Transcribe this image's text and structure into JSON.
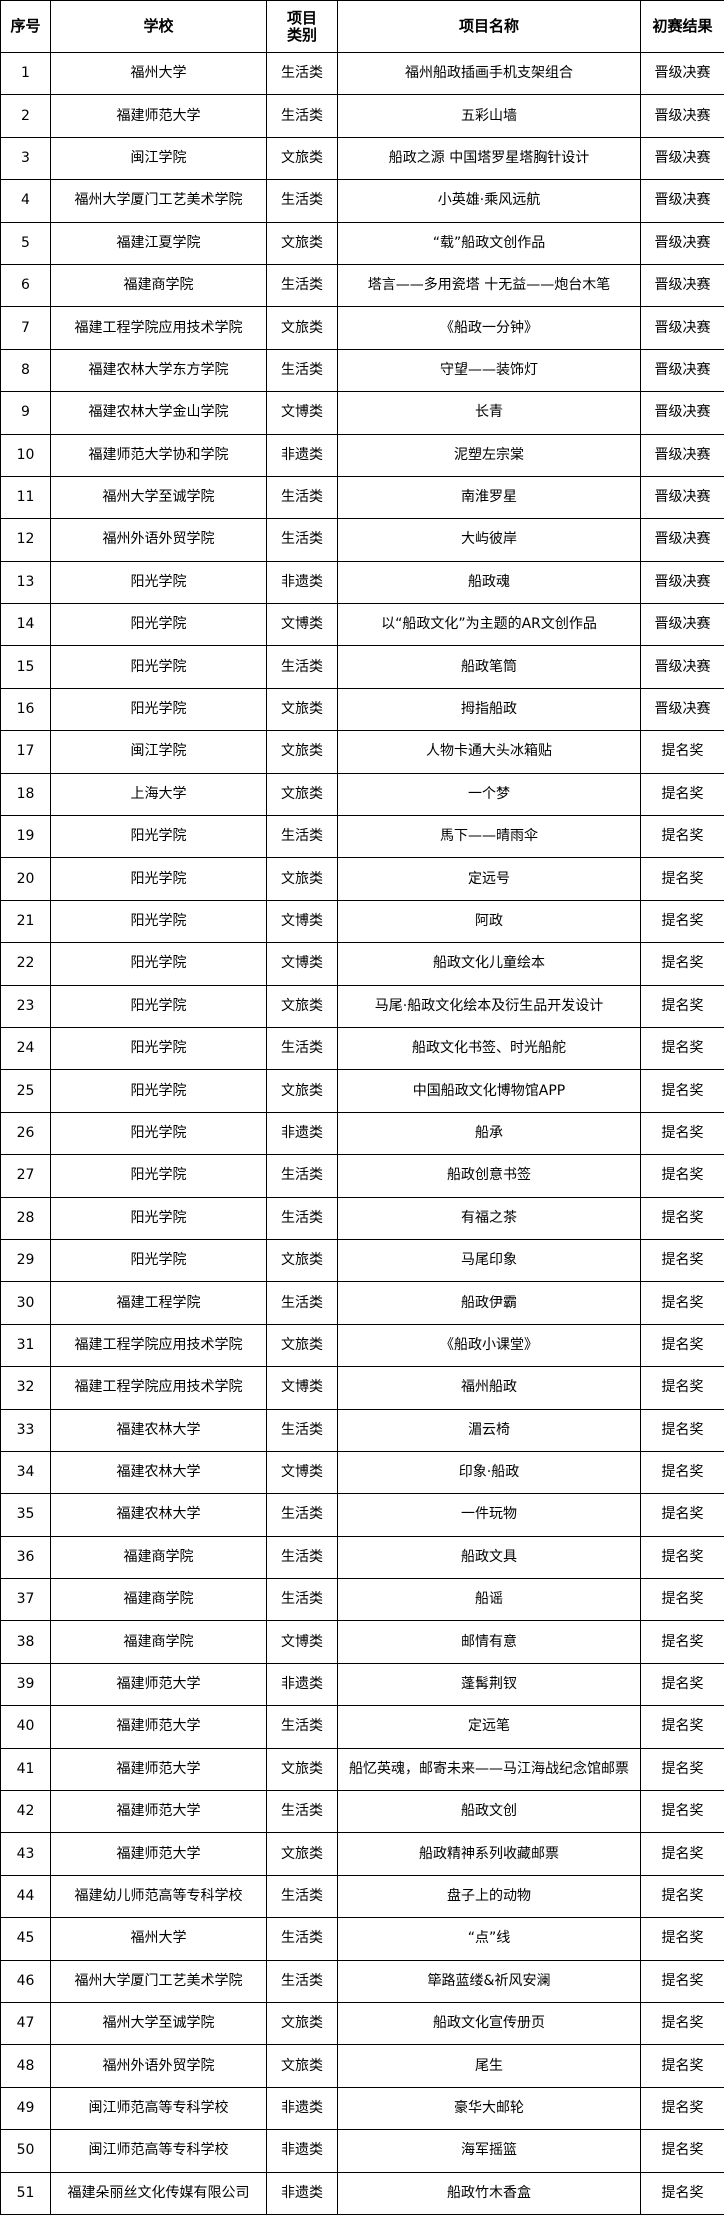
{
  "table": {
    "headers": [
      "序号",
      "学校",
      "项目类别",
      "项目名称",
      "初赛结果"
    ],
    "header_lines": {
      "category": [
        "项目",
        "类别"
      ]
    },
    "rows": [
      [
        "1",
        "福州大学",
        "生活类",
        "福州船政插画手机支架组合",
        "晋级决赛"
      ],
      [
        "2",
        "福建师范大学",
        "生活类",
        "五彩山墙",
        "晋级决赛"
      ],
      [
        "3",
        "闽江学院",
        "文旅类",
        "船政之源  中国塔罗星塔胸针设计",
        "晋级决赛"
      ],
      [
        "4",
        "福州大学厦门工艺美术学院",
        "生活类",
        "小英雄·乘风远航",
        "晋级决赛"
      ],
      [
        "5",
        "福建江夏学院",
        "文旅类",
        "“载”船政文创作品",
        "晋级决赛"
      ],
      [
        "6",
        "福建商学院",
        "生活类",
        "塔言——多用瓷塔  十无益——炮台木笔",
        "晋级决赛"
      ],
      [
        "7",
        "福建工程学院应用技术学院",
        "文旅类",
        "《船政一分钟》",
        "晋级决赛"
      ],
      [
        "8",
        "福建农林大学东方学院",
        "生活类",
        "守望——装饰灯",
        "晋级决赛"
      ],
      [
        "9",
        "福建农林大学金山学院",
        "文博类",
        "长青",
        "晋级决赛"
      ],
      [
        "10",
        "福建师范大学协和学院",
        "非遗类",
        "泥塑左宗棠",
        "晋级决赛"
      ],
      [
        "11",
        "福州大学至诚学院",
        "生活类",
        "南淮罗星",
        "晋级决赛"
      ],
      [
        "12",
        "福州外语外贸学院",
        "生活类",
        "大屿彼岸",
        "晋级决赛"
      ],
      [
        "13",
        "阳光学院",
        "非遗类",
        "船政魂",
        "晋级决赛"
      ],
      [
        "14",
        "阳光学院",
        "文博类",
        "以“船政文化”为主题的AR文创作品",
        "晋级决赛"
      ],
      [
        "15",
        "阳光学院",
        "生活类",
        "船政笔筒",
        "晋级决赛"
      ],
      [
        "16",
        "阳光学院",
        "文旅类",
        "拇指船政",
        "晋级决赛"
      ],
      [
        "17",
        "闽江学院",
        "文旅类",
        "人物卡通大头冰箱贴",
        "提名奖"
      ],
      [
        "18",
        "上海大学",
        "文旅类",
        "一个梦",
        "提名奖"
      ],
      [
        "19",
        "阳光学院",
        "生活类",
        "馬下——晴雨伞",
        "提名奖"
      ],
      [
        "20",
        "阳光学院",
        "文旅类",
        "定远号",
        "提名奖"
      ],
      [
        "21",
        "阳光学院",
        "文博类",
        "阿政",
        "提名奖"
      ],
      [
        "22",
        "阳光学院",
        "文博类",
        "船政文化儿童绘本",
        "提名奖"
      ],
      [
        "23",
        "阳光学院",
        "文旅类",
        "马尾·船政文化绘本及衍生品开发设计",
        "提名奖"
      ],
      [
        "24",
        "阳光学院",
        "生活类",
        "船政文化书签、时光船舵",
        "提名奖"
      ],
      [
        "25",
        "阳光学院",
        "文旅类",
        "中国船政文化博物馆APP",
        "提名奖"
      ],
      [
        "26",
        "阳光学院",
        "非遗类",
        "船承",
        "提名奖"
      ],
      [
        "27",
        "阳光学院",
        "生活类",
        "船政创意书签",
        "提名奖"
      ],
      [
        "28",
        "阳光学院",
        "生活类",
        "有福之茶",
        "提名奖"
      ],
      [
        "29",
        "阳光学院",
        "文旅类",
        "马尾印象",
        "提名奖"
      ],
      [
        "30",
        "福建工程学院",
        "生活类",
        "船政伊霸",
        "提名奖"
      ],
      [
        "31",
        "福建工程学院应用技术学院",
        "文旅类",
        "《船政小课堂》",
        "提名奖"
      ],
      [
        "32",
        "福建工程学院应用技术学院",
        "文博类",
        "福州船政",
        "提名奖"
      ],
      [
        "33",
        "福建农林大学",
        "生活类",
        "湄云椅",
        "提名奖"
      ],
      [
        "34",
        "福建农林大学",
        "文博类",
        "印象·船政",
        "提名奖"
      ],
      [
        "35",
        "福建农林大学",
        "生活类",
        "一件玩物",
        "提名奖"
      ],
      [
        "36",
        "福建商学院",
        "生活类",
        "船政文具",
        "提名奖"
      ],
      [
        "37",
        "福建商学院",
        "生活类",
        "船谣",
        "提名奖"
      ],
      [
        "38",
        "福建商学院",
        "文博类",
        "邮情有意",
        "提名奖"
      ],
      [
        "39",
        "福建师范大学",
        "非遗类",
        "蓬髯荆钗",
        "提名奖"
      ],
      [
        "40",
        "福建师范大学",
        "生活类",
        "定远笔",
        "提名奖"
      ],
      [
        "41",
        "福建师范大学",
        "文旅类",
        "船忆英魂，邮寄未来——马江海战纪念馆邮票",
        "提名奖"
      ],
      [
        "42",
        "福建师范大学",
        "生活类",
        "船政文创",
        "提名奖"
      ],
      [
        "43",
        "福建师范大学",
        "文旅类",
        "船政精神系列收藏邮票",
        "提名奖"
      ],
      [
        "44",
        "福建幼儿师范高等专科学校",
        "生活类",
        "盘子上的动物",
        "提名奖"
      ],
      [
        "45",
        "福州大学",
        "生活类",
        "“点”线",
        "提名奖"
      ],
      [
        "46",
        "福州大学厦门工艺美术学院",
        "生活类",
        "筚路蓝缕&祈风安澜",
        "提名奖"
      ],
      [
        "47",
        "福州大学至诚学院",
        "文旅类",
        "船政文化宣传册页",
        "提名奖"
      ],
      [
        "48",
        "福州外语外贸学院",
        "文旅类",
        "尾生",
        "提名奖"
      ],
      [
        "49",
        "闽江师范高等专科学校",
        "非遗类",
        "豪华大邮轮",
        "提名奖"
      ],
      [
        "50",
        "闽江师范高等专科学校",
        "非遗类",
        "海军摇篮",
        "提名奖"
      ],
      [
        "51",
        "福建朵丽丝文化传媒有限公司",
        "非遗类",
        "船政竹木香盒",
        "提名奖"
      ]
    ]
  }
}
